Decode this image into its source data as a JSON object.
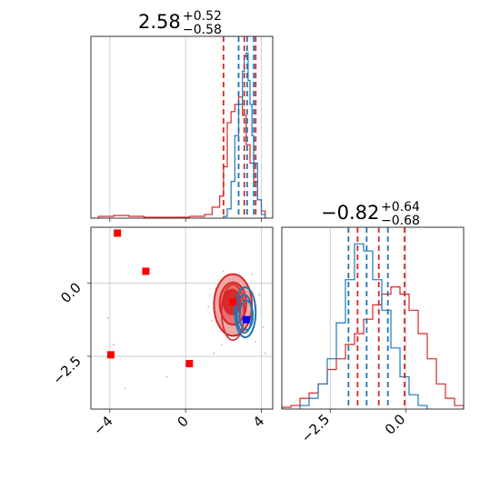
{
  "colors": {
    "red": "#d62728",
    "blue": "#1f77b4",
    "red_fill_light": "#f0a3a3",
    "red_fill_mid": "#e86b6b",
    "red_fill_dark": "#d62728",
    "marker_red": "#ff0000",
    "marker_blue": "#0000ff"
  },
  "titles": [
    {
      "value": "2.58",
      "plus": "+0.52",
      "minus": "−0.58"
    },
    {
      "value": "−0.82",
      "plus": "+0.64",
      "minus": "−0.68"
    }
  ],
  "chart_data": [
    {
      "type": "histogram",
      "panel": "top-left marginal (parameter 1)",
      "xlim": [
        -5,
        4.6
      ],
      "tick_values": [
        -4,
        0,
        4
      ],
      "grid": true,
      "series": [
        {
          "color": "red",
          "bins": [
            -4.6,
            -3.8,
            -3.0,
            -2.2,
            -1.4,
            -0.6,
            0.2,
            1.0,
            1.4,
            1.8,
            2.0,
            2.2,
            2.4,
            2.6,
            2.8,
            3.0,
            3.2,
            3.4,
            3.6,
            3.8,
            4.0,
            4.2
          ],
          "counts": [
            0.01,
            0.015,
            0.01,
            0.005,
            0.005,
            0.005,
            0.01,
            0.02,
            0.06,
            0.12,
            0.28,
            0.52,
            0.58,
            0.62,
            0.66,
            0.56,
            0.4,
            0.3,
            0.2,
            0.1,
            0.04
          ]
        },
        {
          "color": "blue",
          "bins": [
            2.0,
            2.2,
            2.4,
            2.6,
            2.8,
            3.0,
            3.1,
            3.2,
            3.3,
            3.4,
            3.5,
            3.6,
            3.8,
            4.0,
            4.2
          ],
          "counts": [
            0.01,
            0.05,
            0.2,
            0.45,
            0.62,
            0.8,
            0.88,
            0.9,
            0.75,
            0.62,
            0.45,
            0.3,
            0.1,
            0.02
          ]
        }
      ],
      "quantile_lines": [
        {
          "color": "red",
          "x": [
            2.0,
            3.1,
            3.7
          ]
        },
        {
          "color": "blue",
          "x": [
            2.8,
            3.25,
            3.6
          ]
        }
      ]
    },
    {
      "type": "histogram",
      "panel": "bottom-right marginal (parameter 2)",
      "xlim": [
        -4.1,
        1.9
      ],
      "tick_values": [
        -2.5,
        0.0
      ],
      "grid": true,
      "series": [
        {
          "color": "red",
          "bins": [
            -4.1,
            -3.8,
            -3.5,
            -3.2,
            -2.9,
            -2.6,
            -2.3,
            -2.0,
            -1.7,
            -1.4,
            -1.1,
            -0.8,
            -0.5,
            -0.2,
            0.1,
            0.4,
            0.7,
            1.0,
            1.3,
            1.6,
            1.9
          ],
          "counts": [
            0.01,
            0.02,
            0.06,
            0.09,
            0.14,
            0.22,
            0.28,
            0.36,
            0.42,
            0.5,
            0.58,
            0.64,
            0.68,
            0.64,
            0.55,
            0.42,
            0.28,
            0.14,
            0.06,
            0.02
          ]
        },
        {
          "color": "blue",
          "bins": [
            -3.5,
            -3.2,
            -2.9,
            -2.6,
            -2.3,
            -2.0,
            -1.7,
            -1.4,
            -1.1,
            -0.8,
            -0.5,
            -0.2,
            0.1,
            0.4,
            0.7
          ],
          "counts": [
            0.02,
            0.06,
            0.14,
            0.28,
            0.48,
            0.72,
            0.92,
            0.88,
            0.72,
            0.55,
            0.34,
            0.18,
            0.08,
            0.02
          ]
        }
      ],
      "quantile_lines": [
        {
          "color": "blue",
          "x": [
            -1.9,
            -1.3,
            -0.6
          ]
        },
        {
          "color": "red",
          "x": [
            -1.6,
            -0.9,
            -0.05
          ]
        }
      ]
    },
    {
      "type": "contour_scatter",
      "panel": "bottom-left joint (parameter 1 vs parameter 2)",
      "xlim": [
        -5,
        4.6
      ],
      "ylim": [
        -4.3,
        1.9
      ],
      "x_tick_values": [
        -4,
        0,
        4
      ],
      "y_tick_values": [
        0.0,
        -2.5
      ],
      "grid": true,
      "red_contours": [
        {
          "cx": 2.5,
          "cy": -0.75,
          "rx": 1.0,
          "ry": 1.05,
          "level": "light"
        },
        {
          "cx": 2.5,
          "cy": -0.7,
          "rx": 0.7,
          "ry": 0.72,
          "level": "mid"
        },
        {
          "cx": 2.45,
          "cy": -0.65,
          "rx": 0.45,
          "ry": 0.42,
          "level": "dark"
        },
        {
          "cx": 2.5,
          "cy": -1.0,
          "rx": 0.6,
          "ry": 0.95,
          "level": "outline"
        }
      ],
      "blue_contours": [
        {
          "cx": 3.1,
          "cy": -1.05,
          "rx": 0.4,
          "ry": 0.65
        },
        {
          "cx": 3.15,
          "cy": -1.0,
          "rx": 0.55,
          "ry": 0.85
        },
        {
          "cx": 3.2,
          "cy": -1.1,
          "rx": 0.35,
          "ry": 0.5
        }
      ],
      "red_markers": [
        [
          -3.6,
          1.7
        ],
        [
          -2.1,
          0.4
        ],
        [
          -3.95,
          -2.45
        ],
        [
          0.2,
          -2.75
        ],
        [
          2.5,
          -0.65
        ]
      ],
      "blue_markers": [
        [
          3.2,
          -1.25
        ]
      ]
    }
  ]
}
